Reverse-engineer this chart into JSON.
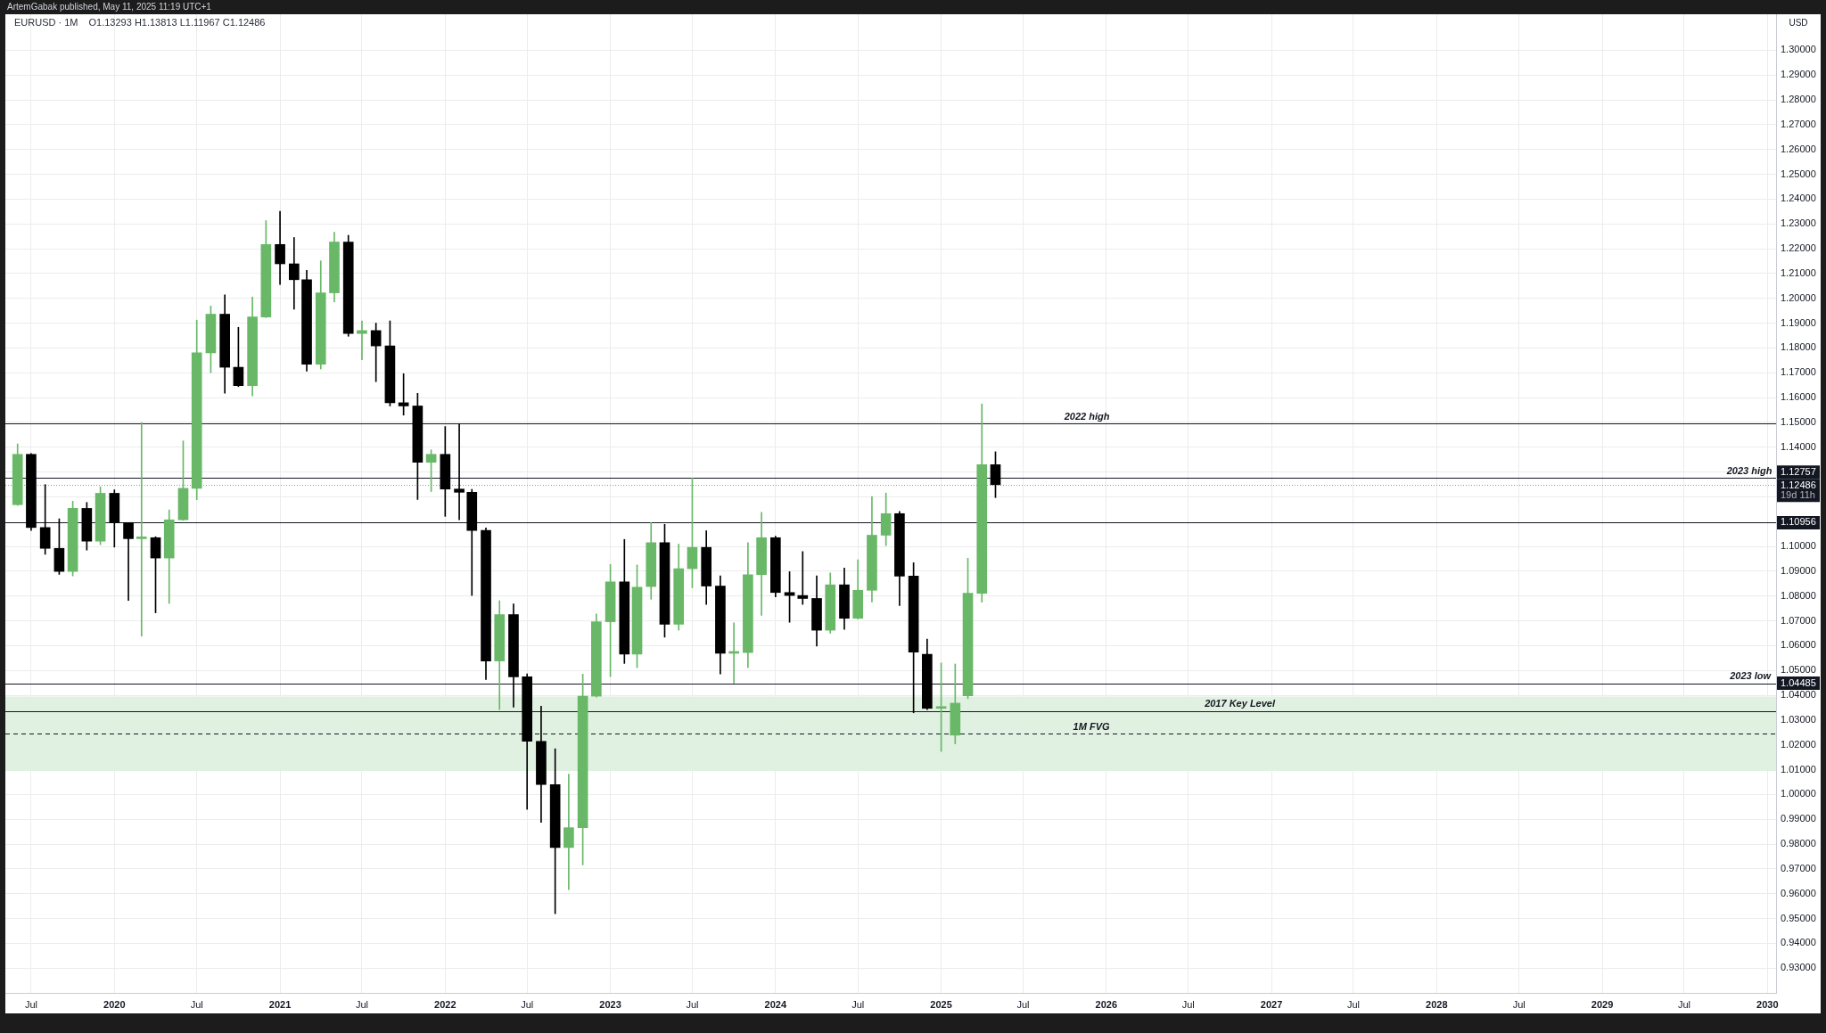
{
  "chart_data": {
    "type": "candlestick",
    "title": "EURUSD · 1M",
    "subtitle": "O1.13293 H1.13813 L1.11967 C1.12486",
    "ylabel": "USD",
    "annotations": [
      "ArtemGabak published, May 11, 2025 11:19 UTC+1",
      {
        "text": "2022 high",
        "x": "2025-11-19",
        "y": 1.1495
      },
      {
        "text": "2023 high",
        "x": "2029-11-22",
        "y": 1.12757
      },
      {
        "text": "2023 low",
        "x": "2029-11-24",
        "y": 1.04485
      },
      {
        "text": "2017 Key Level",
        "x": "2026-10-23",
        "y": 1.0336
      },
      {
        "text": "1M FVG",
        "x": "2025-11-29",
        "y": 1.0244
      }
    ],
    "x": [
      "2019-06",
      "2019-07",
      "2019-08",
      "2019-09",
      "2019-10",
      "2019-11",
      "2019-12",
      "2020-01",
      "2020-02",
      "2020-03",
      "2020-04",
      "2020-05",
      "2020-06",
      "2020-07",
      "2020-08",
      "2020-09",
      "2020-10",
      "2020-11",
      "2020-12",
      "2021-01",
      "2021-02",
      "2021-03",
      "2021-04",
      "2021-05",
      "2021-06",
      "2021-07",
      "2021-08",
      "2021-09",
      "2021-10",
      "2021-11",
      "2021-12",
      "2022-01",
      "2022-02",
      "2022-03",
      "2022-04",
      "2022-05",
      "2022-06",
      "2022-07",
      "2022-08",
      "2022-09",
      "2022-10",
      "2022-11",
      "2022-12",
      "2023-01",
      "2023-02",
      "2023-03",
      "2023-04",
      "2023-05",
      "2023-06",
      "2023-07",
      "2023-08",
      "2023-09",
      "2023-10",
      "2023-11",
      "2023-12",
      "2024-01",
      "2024-02",
      "2024-03",
      "2024-04",
      "2024-05",
      "2024-06",
      "2024-07",
      "2024-08",
      "2024-09",
      "2024-10",
      "2024-11",
      "2024-12",
      "2025-01",
      "2025-02",
      "2025-03",
      "2025-04",
      "2025-05"
    ],
    "ohlc": [
      [
        1.1168,
        1.1413,
        1.1165,
        1.1371
      ],
      [
        1.1371,
        1.1374,
        1.1064,
        1.1076
      ],
      [
        1.1076,
        1.1249,
        1.0968,
        1.0992
      ],
      [
        1.0992,
        1.1111,
        1.0887,
        1.0899
      ],
      [
        1.0899,
        1.1182,
        1.0881,
        1.1153
      ],
      [
        1.1153,
        1.1177,
        1.0985,
        1.1021
      ],
      [
        1.1021,
        1.124,
        1.1007,
        1.1214
      ],
      [
        1.1214,
        1.1228,
        1.0997,
        1.1096
      ],
      [
        1.1096,
        1.1096,
        1.0782,
        1.1031
      ],
      [
        1.1031,
        1.1499,
        1.0638,
        1.1035
      ],
      [
        1.1035,
        1.1039,
        1.0732,
        1.0953
      ],
      [
        1.0953,
        1.1147,
        1.077,
        1.1107
      ],
      [
        1.1107,
        1.1425,
        1.1105,
        1.1234
      ],
      [
        1.1234,
        1.1912,
        1.1188,
        1.178
      ],
      [
        1.178,
        1.1969,
        1.17,
        1.1936
      ],
      [
        1.1936,
        1.2014,
        1.1617,
        1.1722
      ],
      [
        1.1722,
        1.1883,
        1.1644,
        1.1648
      ],
      [
        1.1648,
        1.2005,
        1.1607,
        1.1925
      ],
      [
        1.1925,
        1.2313,
        1.1922,
        1.2217
      ],
      [
        1.2217,
        1.2351,
        1.2056,
        1.2139
      ],
      [
        1.2139,
        1.2245,
        1.1956,
        1.2075
      ],
      [
        1.2075,
        1.2113,
        1.1706,
        1.1734
      ],
      [
        1.1734,
        1.2151,
        1.1715,
        1.2022
      ],
      [
        1.2022,
        1.2266,
        1.1986,
        1.2227
      ],
      [
        1.2227,
        1.2254,
        1.1847,
        1.1858
      ],
      [
        1.1858,
        1.1909,
        1.1752,
        1.187
      ],
      [
        1.187,
        1.19,
        1.1664,
        1.1808
      ],
      [
        1.1808,
        1.1909,
        1.1566,
        1.1579
      ],
      [
        1.1579,
        1.1696,
        1.1529,
        1.1566
      ],
      [
        1.1566,
        1.1617,
        1.1189,
        1.1339
      ],
      [
        1.1339,
        1.1389,
        1.1221,
        1.1371
      ],
      [
        1.1371,
        1.1483,
        1.1121,
        1.1231
      ],
      [
        1.1231,
        1.1495,
        1.1107,
        1.1218
      ],
      [
        1.1218,
        1.123,
        1.0802,
        1.1064
      ],
      [
        1.1064,
        1.1074,
        1.0463,
        1.0538
      ],
      [
        1.0538,
        1.0781,
        1.0342,
        1.0725
      ],
      [
        1.0725,
        1.0768,
        1.0352,
        1.0474
      ],
      [
        1.0474,
        1.0486,
        0.994,
        1.0214
      ],
      [
        1.0214,
        1.0356,
        0.9887,
        1.004
      ],
      [
        1.004,
        1.0184,
        0.9519,
        0.9786
      ],
      [
        0.9786,
        1.0082,
        0.9616,
        0.9866
      ],
      [
        0.9866,
        1.0485,
        0.9716,
        1.0396
      ],
      [
        1.0396,
        1.0728,
        1.0392,
        1.0696
      ],
      [
        1.0696,
        1.0927,
        1.0475,
        1.0857
      ],
      [
        1.0857,
        1.1028,
        1.0528,
        1.0566
      ],
      [
        1.0566,
        1.0925,
        1.0511,
        1.0835
      ],
      [
        1.0838,
        1.10956,
        1.0787,
        1.1015
      ],
      [
        1.1015,
        1.1089,
        1.0634,
        1.0686
      ],
      [
        1.0686,
        1.1009,
        1.0662,
        1.091
      ],
      [
        1.091,
        1.12757,
        1.0833,
        1.0996
      ],
      [
        1.0996,
        1.1063,
        1.0766,
        1.084
      ],
      [
        1.084,
        1.0881,
        1.0486,
        1.0569
      ],
      [
        1.0569,
        1.0692,
        1.04485,
        1.0572
      ],
      [
        1.0572,
        1.1015,
        1.0512,
        1.0886
      ],
      [
        1.0886,
        1.1137,
        1.0722,
        1.1035
      ],
      [
        1.1035,
        1.1041,
        1.0796,
        1.0814
      ],
      [
        1.0814,
        1.0898,
        1.0694,
        1.0802
      ],
      [
        1.0802,
        1.0979,
        1.0766,
        1.079
      ],
      [
        1.079,
        1.0881,
        1.0598,
        1.0662
      ],
      [
        1.0662,
        1.0893,
        1.065,
        1.0845
      ],
      [
        1.0845,
        1.0913,
        1.0665,
        1.071
      ],
      [
        1.071,
        1.0946,
        1.0707,
        1.0823
      ],
      [
        1.0823,
        1.1201,
        1.0776,
        1.1045
      ],
      [
        1.1045,
        1.1215,
        1.1003,
        1.1132
      ],
      [
        1.1132,
        1.1141,
        1.0761,
        1.088
      ],
      [
        1.088,
        1.0934,
        1.0329,
        1.0574
      ],
      [
        1.0565,
        1.0626,
        1.0342,
        1.0347
      ],
      [
        1.0347,
        1.053,
        1.0173,
        1.0353
      ],
      [
        1.0239,
        1.0526,
        1.0204,
        1.0368
      ],
      [
        1.0398,
        1.0952,
        1.0386,
        1.0811
      ],
      [
        1.0811,
        1.1574,
        1.0775,
        1.1329
      ],
      [
        1.13293,
        1.13813,
        1.11967,
        1.12486
      ]
    ],
    "colors": [
      "#68b868",
      "#000000",
      "#000000",
      "#000000",
      "#68b868",
      "#000000",
      "#68b868",
      "#000000",
      "#000000",
      "#68b868",
      "#000000",
      "#68b868",
      "#68b868",
      "#68b868",
      "#68b868",
      "#000000",
      "#000000",
      "#68b868",
      "#68b868",
      "#000000",
      "#000000",
      "#000000",
      "#68b868",
      "#68b868",
      "#000000",
      "#68b868",
      "#000000",
      "#000000",
      "#000000",
      "#000000",
      "#68b868",
      "#000000",
      "#000000",
      "#000000",
      "#000000",
      "#68b868",
      "#000000",
      "#000000",
      "#000000",
      "#000000",
      "#68b868",
      "#68b868",
      "#68b868",
      "#68b868",
      "#000000",
      "#68b868",
      "#68b868",
      "#000000",
      "#68b868",
      "#68b868",
      "#000000",
      "#000000",
      "#68b868",
      "#68b868",
      "#68b868",
      "#000000",
      "#000000",
      "#000000",
      "#000000",
      "#68b868",
      "#000000",
      "#68b868",
      "#68b868",
      "#68b868",
      "#000000",
      "#000000",
      "#000000",
      "#68b868",
      "#68b868",
      "#68b868",
      "#68b868",
      "#000000"
    ],
    "xlim": [
      "2019-05-05",
      "2030-01-20"
    ],
    "xticks": [
      {
        "value": "2019-07",
        "label": "Jul"
      },
      {
        "value": "2020-01",
        "label": "2020"
      },
      {
        "value": "2020-07",
        "label": "Jul"
      },
      {
        "value": "2021-01",
        "label": "2021"
      },
      {
        "value": "2021-07",
        "label": "Jul"
      },
      {
        "value": "2022-01",
        "label": "2022"
      },
      {
        "value": "2022-07",
        "label": "Jul"
      },
      {
        "value": "2023-01",
        "label": "2023"
      },
      {
        "value": "2023-07",
        "label": "Jul"
      },
      {
        "value": "2024-01",
        "label": "2024"
      },
      {
        "value": "2024-07",
        "label": "Jul"
      },
      {
        "value": "2025-01",
        "label": "2025"
      },
      {
        "value": "2025-07",
        "label": "Jul"
      },
      {
        "value": "2026-01",
        "label": "2026"
      },
      {
        "value": "2026-07",
        "label": "Jul"
      },
      {
        "value": "2027-01",
        "label": "2027"
      },
      {
        "value": "2027-07",
        "label": "Jul"
      },
      {
        "value": "2028-01",
        "label": "2028"
      },
      {
        "value": "2028-07",
        "label": "Jul"
      },
      {
        "value": "2029-01",
        "label": "2029"
      },
      {
        "value": "2029-07",
        "label": "Jul"
      },
      {
        "value": "2030-01",
        "label": "2030"
      }
    ],
    "ylim": [
      0.92,
      1.3145
    ],
    "yticks": [
      {
        "value": 0.93,
        "label": "0.93000"
      },
      {
        "value": 0.94,
        "label": "0.94000"
      },
      {
        "value": 0.95,
        "label": "0.95000"
      },
      {
        "value": 0.96,
        "label": "0.96000"
      },
      {
        "value": 0.97,
        "label": "0.97000"
      },
      {
        "value": 0.98,
        "label": "0.98000"
      },
      {
        "value": 0.99,
        "label": "0.99000"
      },
      {
        "value": 1.0,
        "label": "1.00000"
      },
      {
        "value": 1.01,
        "label": "1.01000"
      },
      {
        "value": 1.02,
        "label": "1.02000"
      },
      {
        "value": 1.03,
        "label": "1.03000"
      },
      {
        "value": 1.04,
        "label": "1.04000"
      },
      {
        "value": 1.05,
        "label": "1.05000"
      },
      {
        "value": 1.06,
        "label": "1.06000"
      },
      {
        "value": 1.07,
        "label": "1.07000"
      },
      {
        "value": 1.08,
        "label": "1.08000"
      },
      {
        "value": 1.09,
        "label": "1.09000"
      },
      {
        "value": 1.1,
        "label": "1.10000"
      },
      {
        "value": 1.12,
        "label": null
      },
      {
        "value": 1.13,
        "label": null
      },
      {
        "value": 1.14,
        "label": "1.14000"
      },
      {
        "value": 1.15,
        "label": "1.15000"
      },
      {
        "value": 1.16,
        "label": "1.16000"
      },
      {
        "value": 1.17,
        "label": "1.17000"
      },
      {
        "value": 1.18,
        "label": "1.18000"
      },
      {
        "value": 1.19,
        "label": "1.19000"
      },
      {
        "value": 1.2,
        "label": "1.20000"
      },
      {
        "value": 1.21,
        "label": "1.21000"
      },
      {
        "value": 1.22,
        "label": "1.22000"
      },
      {
        "value": 1.23,
        "label": "1.23000"
      },
      {
        "value": 1.24,
        "label": "1.24000"
      },
      {
        "value": 1.25,
        "label": "1.25000"
      },
      {
        "value": 1.26,
        "label": "1.26000"
      },
      {
        "value": 1.27,
        "label": "1.27000"
      },
      {
        "value": 1.28,
        "label": "1.28000"
      },
      {
        "value": 1.29,
        "label": "1.29000"
      },
      {
        "value": 1.3,
        "label": "1.30000"
      }
    ],
    "ref_lines": [
      {
        "axis": "y",
        "value": 1.12757,
        "label": "1.12757",
        "color": "#131722"
      },
      {
        "axis": "y",
        "value": 1.12486,
        "label": "1.12486\n19d 11h",
        "color": "#9598a1",
        "line_style": "dotted"
      },
      {
        "axis": "y",
        "value": 1.04485,
        "label": "1.04485",
        "color": "#131722"
      },
      {
        "axis": "y",
        "value": 1.0336,
        "color": "#131722"
      },
      {
        "axis": "y",
        "value": 1.0244,
        "color": "#131722",
        "line_style": "dashed"
      },
      {
        "axis": "y",
        "value": 1.1495,
        "color": "#131722"
      },
      {
        "axis": "y",
        "value": 1.10956,
        "label": "1.10956",
        "color": "#131722"
      }
    ],
    "bands": [
      {
        "axis": "y",
        "from": 1.0095,
        "to": 1.0395,
        "color": "#e1f1e1"
      }
    ],
    "grid": true
  }
}
